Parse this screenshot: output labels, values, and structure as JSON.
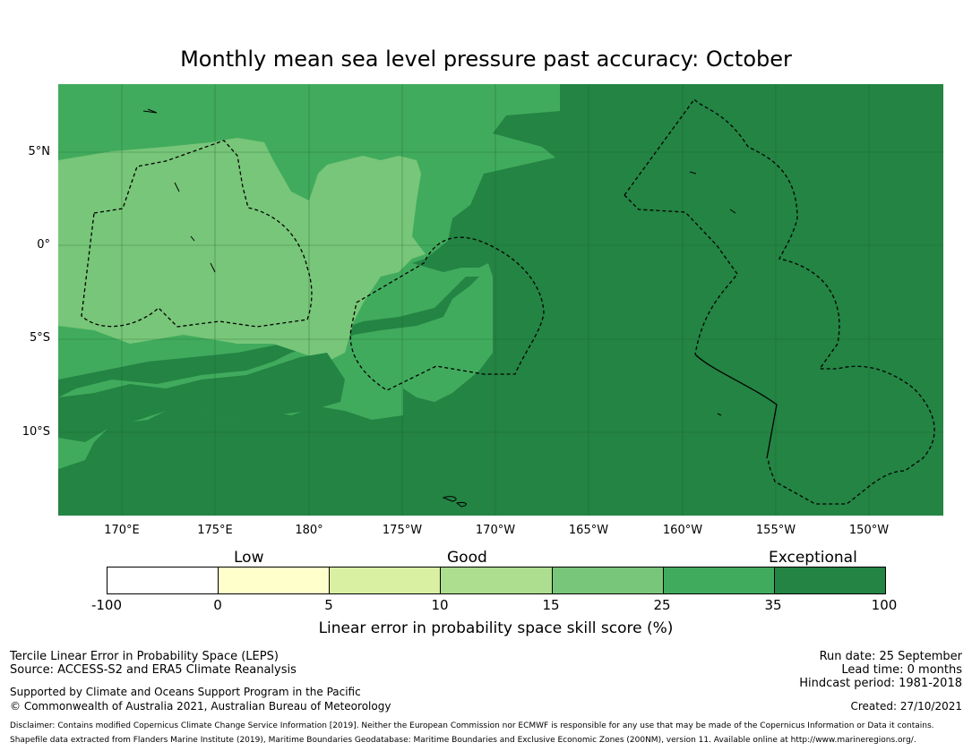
{
  "title": "Monthly mean sea level pressure past accuracy: October",
  "map": {
    "lat_labels": [
      "5°N",
      "0°",
      "5°S",
      "10°S"
    ],
    "lon_labels": [
      "170°E",
      "175°E",
      "180°",
      "175°W",
      "170°W",
      "165°W",
      "160°W",
      "155°W",
      "150°W"
    ],
    "extent": {
      "lon_min": 166.4,
      "lon_max": 213.9,
      "lat_min": -14.5,
      "lat_max": 8.6
    },
    "regions_note": "Skill categories shown by shaded fill; dashed lines mark EEZ boundaries"
  },
  "colorbar": {
    "categories": [
      "Low",
      "Good",
      "Exceptional"
    ],
    "ticks": [
      "-100",
      "0",
      "5",
      "10",
      "15",
      "25",
      "35",
      "100"
    ],
    "colors": [
      "#ffffff",
      "#ffffcc",
      "#d9f0a3",
      "#addd8e",
      "#78c679",
      "#41ab5d",
      "#238443"
    ],
    "label": "Linear error in probability space skill score (%)"
  },
  "footer": {
    "method": "Tercile Linear Error in Probability Space (LEPS)",
    "source": "Source: ACCESS-S2 and ERA5 Climate Reanalysis",
    "support": "Supported by Climate and Oceans Support Program in the Pacific",
    "copyright": "© Commonwealth of Australia 2021, Australian Bureau of Meteorology",
    "run_date": "Run date: 25 September",
    "lead_time": "Lead time: 0 months",
    "hindcast": "Hindcast period: 1981-2018",
    "created": "Created: 27/10/2021",
    "disclaimer1": "Disclaimer: Contains modified Copernicus Climate Change Service Information [2019]. Neither the European Commission nor ECMWF is responsible for any use that may be made of the Copernicus Information or Data it contains.",
    "disclaimer2": "Shapefile data extracted from Flanders Marine Institute (2019), Maritime Boundaries Geodatabase: Maritime Boundaries and Exclusive Economic Zones (200NM), version 11. Available online at http://www.marineregions.org/."
  }
}
